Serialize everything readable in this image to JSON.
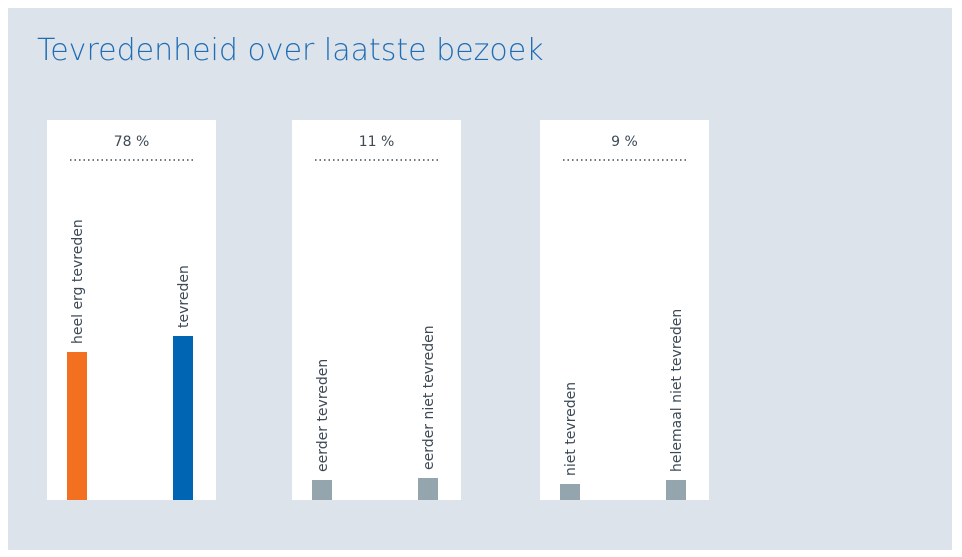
{
  "chart_data": {
    "type": "bar",
    "title": "Tevredenheid over laatste bezoek",
    "ylim": [
      0,
      100
    ],
    "groups": [
      {
        "label": "78 %",
        "categories": [
          "heel erg tevreden",
          "tevreden"
        ],
        "values": [
          37,
          41
        ],
        "colors": [
          "#f37021",
          "#0066b3"
        ]
      },
      {
        "label": "11 %",
        "categories": [
          "eerder tevreden",
          "eerder niet tevreden"
        ],
        "values": [
          5,
          5.5
        ],
        "colors": [
          "#95a5ae",
          "#95a5ae"
        ]
      },
      {
        "label": "9 %",
        "categories": [
          "niet tevreden",
          "helemaal niet tevreden"
        ],
        "values": [
          4,
          5
        ],
        "colors": [
          "#95a5ae",
          "#95a5ae"
        ]
      }
    ]
  }
}
